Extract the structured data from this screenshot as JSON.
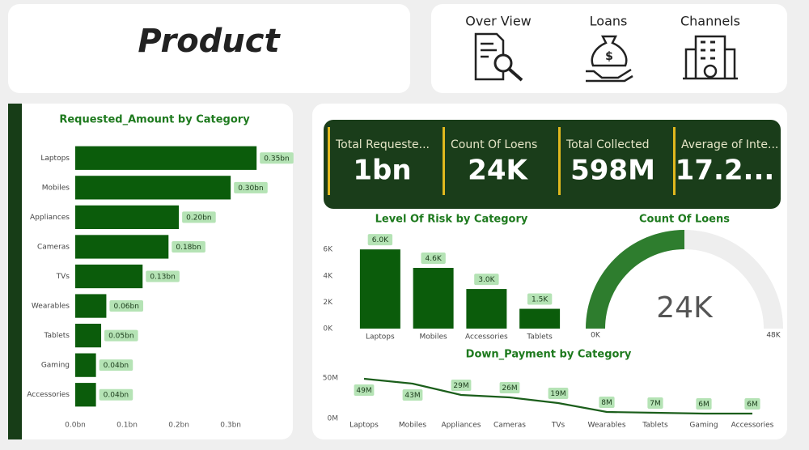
{
  "header": {
    "title": "Product"
  },
  "nav": [
    {
      "label": "Over View"
    },
    {
      "label": "Loans"
    },
    {
      "label": "Channels"
    }
  ],
  "kpis": [
    {
      "label": "Total Requeste...",
      "value": "1bn"
    },
    {
      "label": "Count Of Loens",
      "value": "24K"
    },
    {
      "label": "Total Collected",
      "value": "598M"
    },
    {
      "label": "Average of Inte...",
      "value": "17.2..."
    }
  ],
  "chart_data": [
    {
      "type": "bar",
      "orientation": "horizontal",
      "title": "Requested_Amount by Category",
      "categories": [
        "Laptops",
        "Mobiles",
        "Appliances",
        "Cameras",
        "TVs",
        "Wearables",
        "Tablets",
        "Gaming",
        "Accessories"
      ],
      "values": [
        0.35,
        0.3,
        0.2,
        0.18,
        0.13,
        0.06,
        0.05,
        0.04,
        0.04
      ],
      "value_labels": [
        "0.35bn",
        "0.30bn",
        "0.20bn",
        "0.18bn",
        "0.13bn",
        "0.06bn",
        "0.05bn",
        "0.04bn",
        "0.04bn"
      ],
      "color": "#0b5c0b",
      "xlim": [
        0,
        0.37
      ],
      "xticks": [
        {
          "value": 0,
          "label": "0.0bn"
        },
        {
          "value": 0.1,
          "label": "0.1bn"
        },
        {
          "value": 0.2,
          "label": "0.2bn"
        },
        {
          "value": 0.3,
          "label": "0.3bn"
        }
      ]
    },
    {
      "type": "bar",
      "orientation": "vertical",
      "title": "Level Of Risk by Category",
      "categories": [
        "Laptops",
        "Mobiles",
        "Accessories",
        "Tablets"
      ],
      "values": [
        6.0,
        4.6,
        3.0,
        1.5
      ],
      "value_labels": [
        "6.0K",
        "4.6K",
        "3.0K",
        "1.5K"
      ],
      "color": "#0b5c0b",
      "ylim": [
        0,
        6.5
      ],
      "yticks": [
        {
          "value": 0,
          "label": "0K"
        },
        {
          "value": 2,
          "label": "2K"
        },
        {
          "value": 4,
          "label": "4K"
        },
        {
          "value": 6,
          "label": "6K"
        }
      ]
    },
    {
      "type": "gauge",
      "title": "Count Of Loens",
      "values": [
        24
      ],
      "value_labels": [
        "24K"
      ],
      "color": "#2e7d2e",
      "ylim": [
        0,
        48
      ],
      "yticks": [
        {
          "value": 0,
          "label": "0K"
        },
        {
          "value": 48,
          "label": "48K"
        }
      ]
    },
    {
      "type": "line",
      "title": "Down_Payment by Category",
      "categories": [
        "Laptops",
        "Mobiles",
        "Appliances",
        "Cameras",
        "TVs",
        "Wearables",
        "Tablets",
        "Gaming",
        "Accessories"
      ],
      "values": [
        49,
        43,
        29,
        26,
        19,
        8,
        7,
        6,
        6
      ],
      "value_labels": [
        "49M",
        "43M",
        "29M",
        "26M",
        "19M",
        "8M",
        "7M",
        "6M",
        "6M"
      ],
      "color": "#1b5e1b",
      "ylim": [
        0,
        50
      ],
      "yticks": [
        {
          "value": 0,
          "label": "0M"
        },
        {
          "value": 50,
          "label": "50M"
        }
      ]
    }
  ]
}
